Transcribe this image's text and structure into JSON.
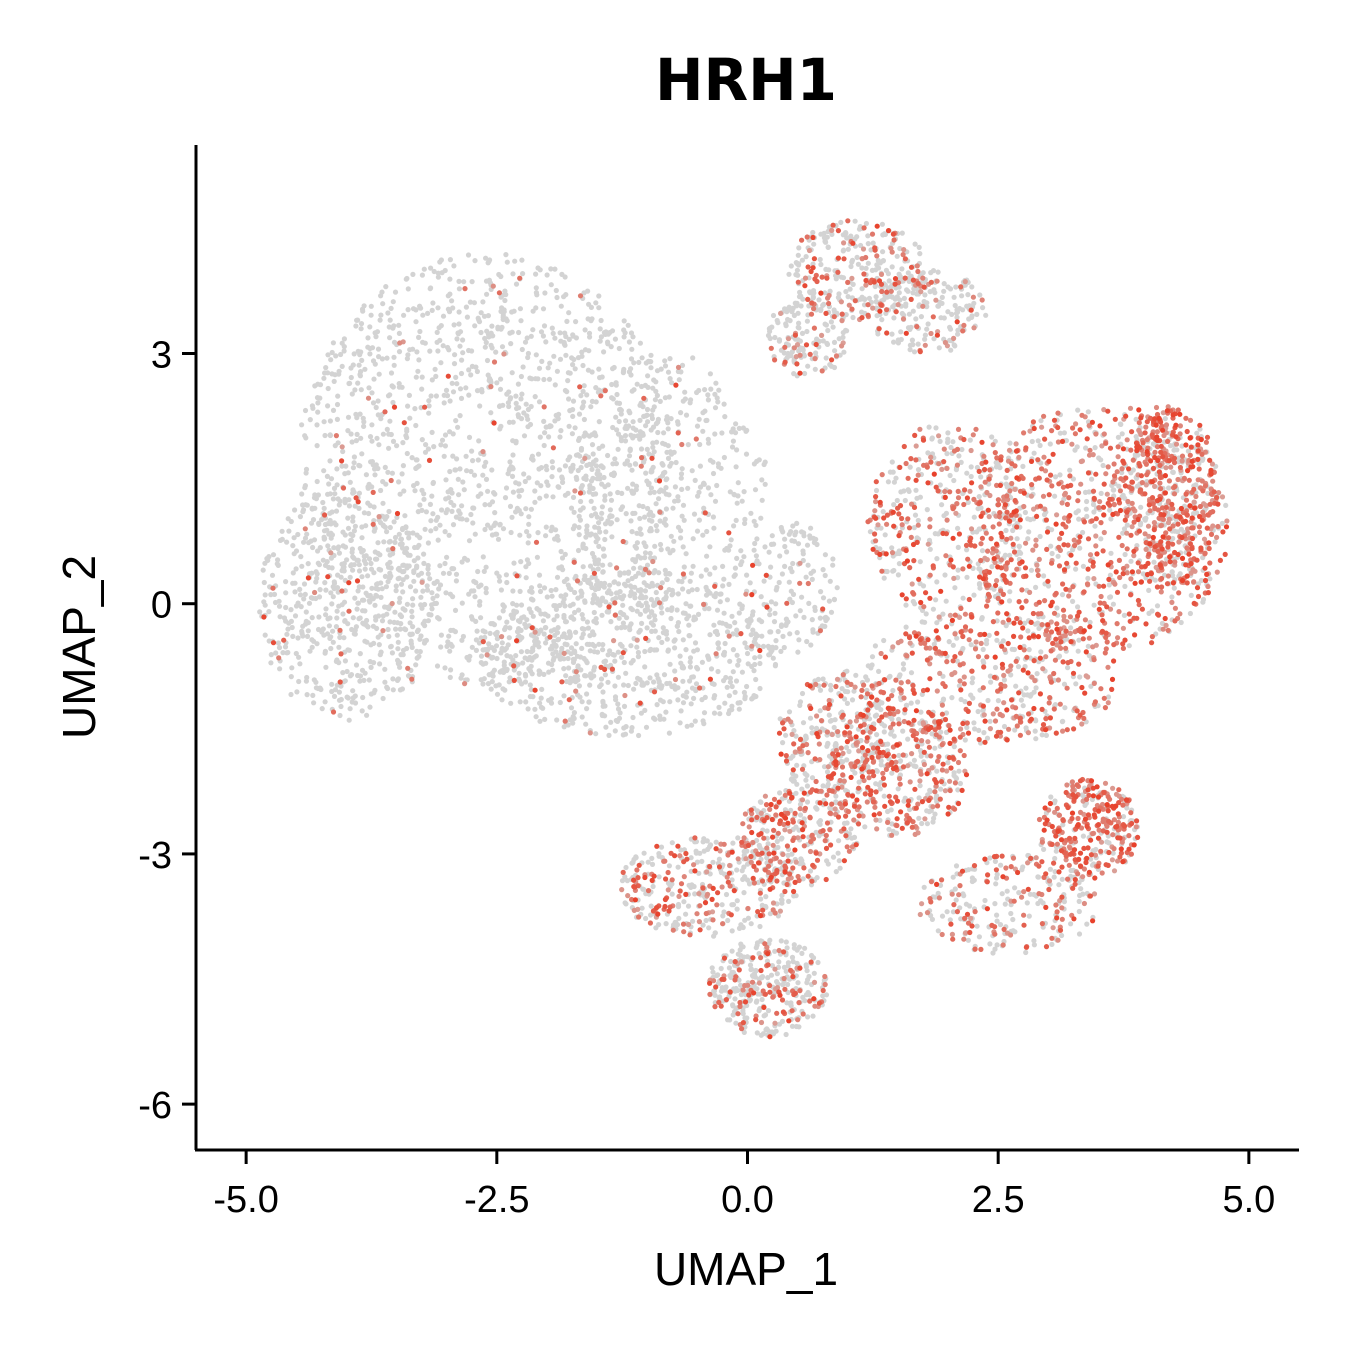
{
  "chart_data": {
    "type": "scatter",
    "title": "HRH1",
    "xlabel": "UMAP_1",
    "ylabel": "UMAP_2",
    "xlim": [
      -5.5,
      5.5
    ],
    "ylim": [
      -6.55,
      5.5
    ],
    "xticks": [
      -5.0,
      -2.5,
      0.0,
      2.5,
      5.0
    ],
    "xtick_labels": [
      "-5.0",
      "-2.5",
      "0.0",
      "2.5",
      "5.0"
    ],
    "yticks": [
      3,
      0,
      -3,
      -6
    ],
    "ytick_labels": [
      "3",
      "0",
      "-3",
      "-6"
    ],
    "grid": false,
    "legend": "none",
    "colors": {
      "low": "#d3d3d3",
      "high": "#e8402a",
      "axis": "#000000"
    },
    "cluster_regions": [
      {
        "cx": -2.6,
        "cy": 1.6,
        "rx": 1.9,
        "ry": 2.6,
        "n": 1500,
        "expr": 0.04
      },
      {
        "cx": -4.0,
        "cy": 0.0,
        "rx": 0.9,
        "ry": 1.4,
        "n": 500,
        "expr": 0.05
      },
      {
        "cx": -1.2,
        "cy": -0.6,
        "rx": 1.5,
        "ry": 1.0,
        "n": 700,
        "expr": 0.06
      },
      {
        "cx": -0.8,
        "cy": 1.4,
        "rx": 1.0,
        "ry": 1.6,
        "n": 400,
        "expr": 0.05
      },
      {
        "cx": 0.4,
        "cy": 0.2,
        "rx": 0.5,
        "ry": 0.8,
        "n": 150,
        "expr": 0.05
      },
      {
        "cx": 1.1,
        "cy": 4.0,
        "rx": 0.7,
        "ry": 0.6,
        "n": 300,
        "expr": 0.25
      },
      {
        "cx": 0.6,
        "cy": 3.2,
        "rx": 0.4,
        "ry": 0.5,
        "n": 150,
        "expr": 0.25
      },
      {
        "cx": 1.8,
        "cy": 3.5,
        "rx": 0.6,
        "ry": 0.5,
        "n": 180,
        "expr": 0.2
      },
      {
        "cx": 3.5,
        "cy": 0.9,
        "rx": 1.3,
        "ry": 1.5,
        "n": 900,
        "expr": 0.65
      },
      {
        "cx": 4.2,
        "cy": 1.3,
        "rx": 0.5,
        "ry": 1.1,
        "n": 400,
        "expr": 0.75
      },
      {
        "cx": 2.0,
        "cy": 1.0,
        "rx": 0.8,
        "ry": 1.2,
        "n": 400,
        "expr": 0.45
      },
      {
        "cx": 2.4,
        "cy": -0.9,
        "rx": 1.3,
        "ry": 0.8,
        "n": 500,
        "expr": 0.6
      },
      {
        "cx": 1.5,
        "cy": -2.0,
        "rx": 0.7,
        "ry": 0.8,
        "n": 350,
        "expr": 0.6
      },
      {
        "cx": 3.4,
        "cy": -2.7,
        "rx": 0.5,
        "ry": 0.6,
        "n": 300,
        "expr": 0.75
      },
      {
        "cx": 2.6,
        "cy": -3.6,
        "rx": 0.9,
        "ry": 0.6,
        "n": 250,
        "expr": 0.5
      },
      {
        "cx": 0.5,
        "cy": -2.8,
        "rx": 0.6,
        "ry": 0.6,
        "n": 300,
        "expr": 0.5
      },
      {
        "cx": -0.4,
        "cy": -3.4,
        "rx": 0.9,
        "ry": 0.6,
        "n": 350,
        "expr": 0.4
      },
      {
        "cx": 0.2,
        "cy": -4.6,
        "rx": 0.6,
        "ry": 0.6,
        "n": 350,
        "expr": 0.25
      },
      {
        "cx": 0.9,
        "cy": -1.6,
        "rx": 0.6,
        "ry": 0.8,
        "n": 300,
        "expr": 0.35
      }
    ]
  }
}
